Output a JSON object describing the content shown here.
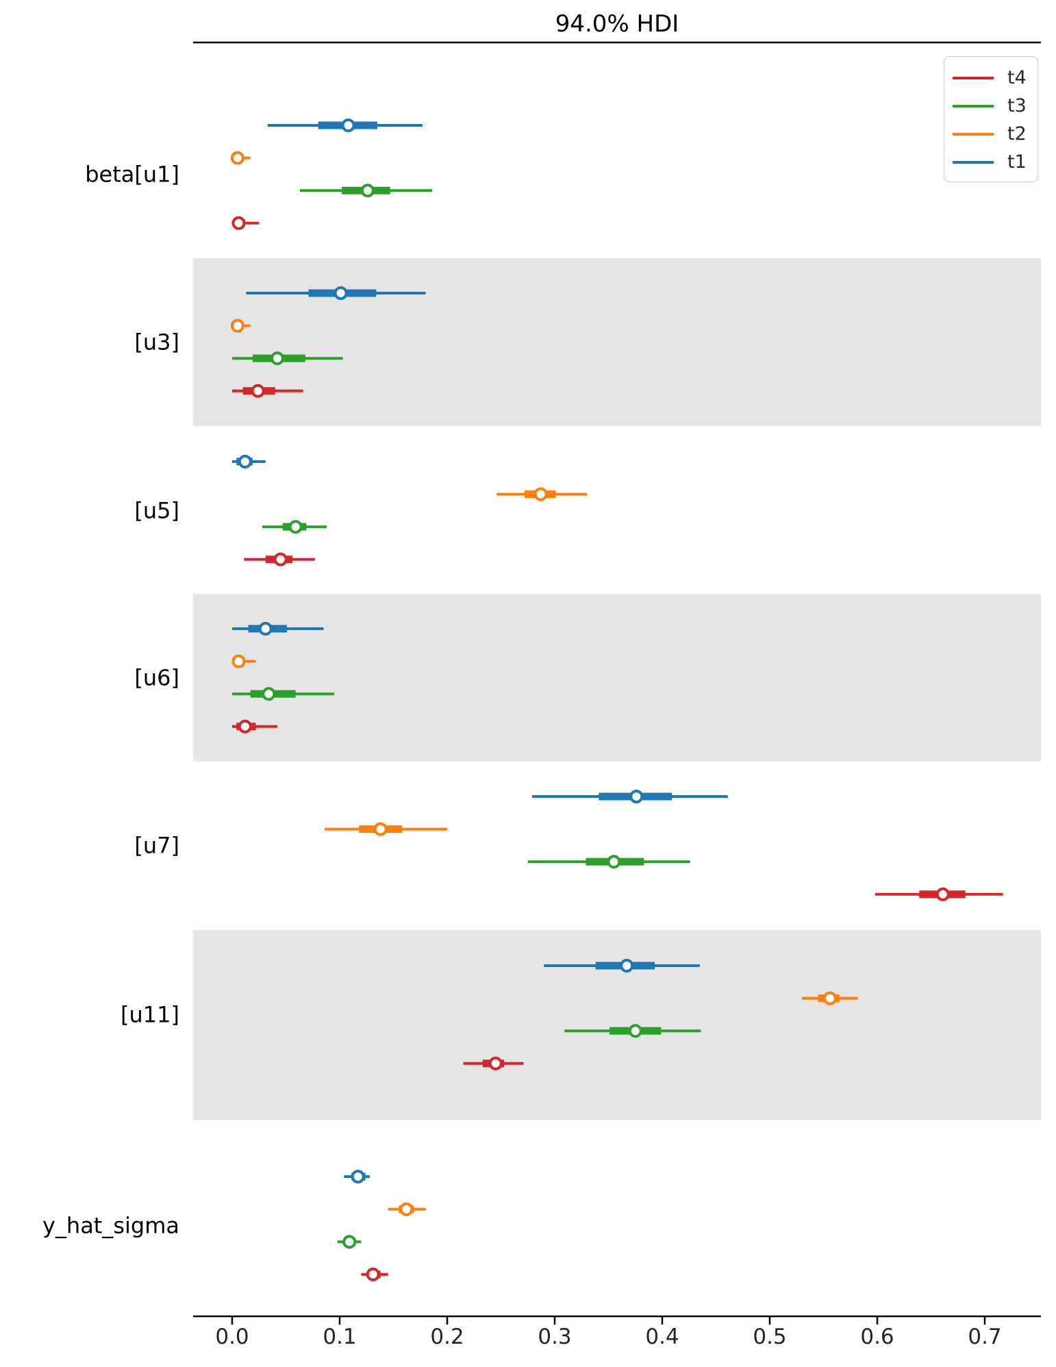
{
  "chart_data": {
    "type": "forest",
    "title": "94.0% HDI",
    "x_ticks": [
      0.0,
      0.1,
      0.2,
      0.3,
      0.4,
      0.5,
      0.6,
      0.7
    ],
    "x_tick_labels": [
      "0.0",
      "0.1",
      "0.2",
      "0.3",
      "0.4",
      "0.5",
      "0.6",
      "0.7"
    ],
    "xlim": [
      -0.0363,
      0.7522
    ],
    "legend_position": "upper right",
    "legend": [
      {
        "label": "t4",
        "color": "#d62728"
      },
      {
        "label": "t3",
        "color": "#2ca02c"
      },
      {
        "label": "t2",
        "color": "#ff7f0e"
      },
      {
        "label": "t1",
        "color": "#1f77b4"
      }
    ],
    "chain_colors": {
      "t1": "#1f77b4",
      "t2": "#ff7f0e",
      "t3": "#2ca02c",
      "t4": "#d62728"
    },
    "band_color": "#e5e5e5",
    "groups": [
      {
        "label": "beta[u1]",
        "shaded": false,
        "rows": [
          {
            "chain": "t1",
            "lo": 0.033,
            "q1": 0.08,
            "point": 0.108,
            "q3": 0.135,
            "hi": 0.177
          },
          {
            "chain": "t2",
            "lo": 0.0,
            "q1": 0.001,
            "point": 0.005,
            "q3": 0.01,
            "hi": 0.017
          },
          {
            "chain": "t3",
            "lo": 0.063,
            "q1": 0.102,
            "point": 0.126,
            "q3": 0.147,
            "hi": 0.186
          },
          {
            "chain": "t4",
            "lo": 0.0,
            "q1": 0.001,
            "point": 0.006,
            "q3": 0.012,
            "hi": 0.025
          }
        ]
      },
      {
        "label": "[u3]",
        "shaded": true,
        "rows": [
          {
            "chain": "t1",
            "lo": 0.013,
            "q1": 0.071,
            "point": 0.101,
            "q3": 0.134,
            "hi": 0.18
          },
          {
            "chain": "t2",
            "lo": 0.0,
            "q1": 0.001,
            "point": 0.005,
            "q3": 0.01,
            "hi": 0.017
          },
          {
            "chain": "t3",
            "lo": 0.0,
            "q1": 0.019,
            "point": 0.042,
            "q3": 0.068,
            "hi": 0.103
          },
          {
            "chain": "t4",
            "lo": 0.0,
            "q1": 0.01,
            "point": 0.024,
            "q3": 0.04,
            "hi": 0.066
          }
        ]
      },
      {
        "label": "[u5]",
        "shaded": false,
        "rows": [
          {
            "chain": "t1",
            "lo": 0.0,
            "q1": 0.004,
            "point": 0.012,
            "q3": 0.019,
            "hi": 0.031
          },
          {
            "chain": "t2",
            "lo": 0.246,
            "q1": 0.272,
            "point": 0.287,
            "q3": 0.301,
            "hi": 0.33
          },
          {
            "chain": "t3",
            "lo": 0.028,
            "q1": 0.047,
            "point": 0.059,
            "q3": 0.069,
            "hi": 0.088
          },
          {
            "chain": "t4",
            "lo": 0.011,
            "q1": 0.031,
            "point": 0.045,
            "q3": 0.056,
            "hi": 0.077
          }
        ]
      },
      {
        "label": "[u6]",
        "shaded": true,
        "rows": [
          {
            "chain": "t1",
            "lo": 0.0,
            "q1": 0.015,
            "point": 0.031,
            "q3": 0.051,
            "hi": 0.085
          },
          {
            "chain": "t2",
            "lo": 0.0,
            "q1": 0.001,
            "point": 0.006,
            "q3": 0.011,
            "hi": 0.022
          },
          {
            "chain": "t3",
            "lo": 0.0,
            "q1": 0.017,
            "point": 0.034,
            "q3": 0.059,
            "hi": 0.095
          },
          {
            "chain": "t4",
            "lo": 0.0,
            "q1": 0.004,
            "point": 0.012,
            "q3": 0.022,
            "hi": 0.042
          }
        ]
      },
      {
        "label": "[u7]",
        "shaded": false,
        "rows": [
          {
            "chain": "t1",
            "lo": 0.279,
            "q1": 0.341,
            "point": 0.376,
            "q3": 0.409,
            "hi": 0.461
          },
          {
            "chain": "t2",
            "lo": 0.086,
            "q1": 0.118,
            "point": 0.138,
            "q3": 0.158,
            "hi": 0.2
          },
          {
            "chain": "t3",
            "lo": 0.275,
            "q1": 0.329,
            "point": 0.355,
            "q3": 0.383,
            "hi": 0.426
          },
          {
            "chain": "t4",
            "lo": 0.598,
            "q1": 0.639,
            "point": 0.661,
            "q3": 0.682,
            "hi": 0.717
          }
        ]
      },
      {
        "label": "[u11]",
        "shaded": true,
        "rows": [
          {
            "chain": "t1",
            "lo": 0.29,
            "q1": 0.338,
            "point": 0.367,
            "q3": 0.393,
            "hi": 0.435
          },
          {
            "chain": "t2",
            "lo": 0.53,
            "q1": 0.545,
            "point": 0.556,
            "q3": 0.565,
            "hi": 0.582
          },
          {
            "chain": "t3",
            "lo": 0.309,
            "q1": 0.351,
            "point": 0.375,
            "q3": 0.399,
            "hi": 0.436
          },
          {
            "chain": "t4",
            "lo": 0.215,
            "q1": 0.233,
            "point": 0.245,
            "q3": 0.253,
            "hi": 0.271
          }
        ]
      },
      {
        "label": "y_hat_sigma",
        "shaded": false,
        "rows": [
          {
            "chain": "t1",
            "lo": 0.104,
            "q1": 0.111,
            "point": 0.117,
            "q3": 0.124,
            "hi": 0.128
          },
          {
            "chain": "t2",
            "lo": 0.145,
            "q1": 0.155,
            "point": 0.162,
            "q3": 0.169,
            "hi": 0.18
          },
          {
            "chain": "t3",
            "lo": 0.098,
            "q1": 0.104,
            "point": 0.109,
            "q3": 0.115,
            "hi": 0.12
          },
          {
            "chain": "t4",
            "lo": 0.12,
            "q1": 0.127,
            "point": 0.131,
            "q3": 0.138,
            "hi": 0.145
          }
        ]
      }
    ]
  }
}
